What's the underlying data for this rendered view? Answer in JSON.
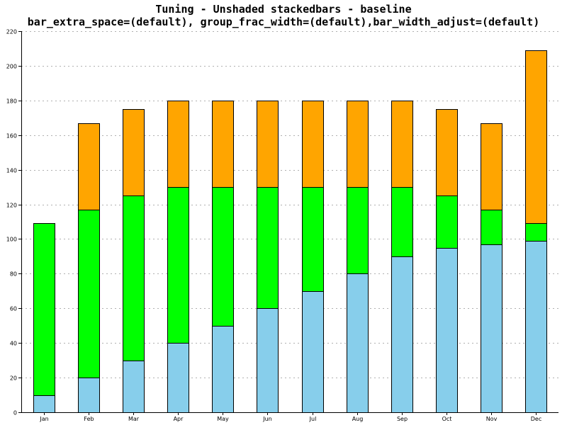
{
  "chart_data": {
    "type": "bar",
    "stacked": true,
    "title_line1": "Tuning - Unshaded stackedbars - baseline",
    "title_line2": "bar_extra_space=(default), group_frac_width=(default),bar_width_adjust=(default)",
    "categories": [
      "Jan",
      "Feb",
      "Mar",
      "Apr",
      "May",
      "Jun",
      "Jul",
      "Aug",
      "Sep",
      "Oct",
      "Nov",
      "Dec"
    ],
    "series": [
      {
        "color": "#87ceeb",
        "values": [
          10,
          20,
          30,
          40,
          50,
          60,
          70,
          80,
          90,
          95,
          97,
          99
        ]
      },
      {
        "color": "#00ff00",
        "values": [
          99,
          97,
          95,
          90,
          80,
          70,
          60,
          50,
          40,
          30,
          20,
          10
        ]
      },
      {
        "color": "#ffa500",
        "values": [
          0,
          50,
          50,
          50,
          50,
          50,
          50,
          50,
          50,
          50,
          50,
          100
        ]
      }
    ],
    "ylim": [
      0,
      220
    ],
    "yticks": [
      0,
      20,
      40,
      60,
      80,
      100,
      120,
      140,
      160,
      180,
      200,
      220
    ],
    "grid": true,
    "legend": false
  }
}
